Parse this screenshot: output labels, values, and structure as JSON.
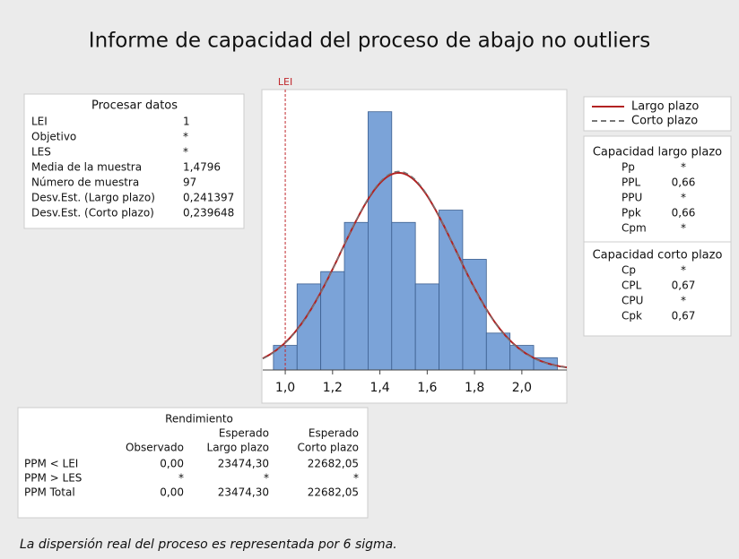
{
  "title": "Informe de capacidad del proceso de abajo no outliers",
  "process": {
    "title": "Procesar datos",
    "rows": [
      {
        "label": "LEI",
        "value": "1"
      },
      {
        "label": "Objetivo",
        "value": "*"
      },
      {
        "label": "LES",
        "value": "*"
      },
      {
        "label": "Media de la muestra",
        "value": "1,4796"
      },
      {
        "label": "Número de muestra",
        "value": "97"
      },
      {
        "label": "Desv.Est. (Largo plazo)",
        "value": "0,241397"
      },
      {
        "label": "Desv.Est. (Corto plazo)",
        "value": "0,239648"
      }
    ]
  },
  "chart_data": {
    "type": "histogram",
    "bins": [
      0.95,
      1.05,
      1.15,
      1.25,
      1.35,
      1.45,
      1.55,
      1.65,
      1.75,
      1.85,
      1.95,
      2.05,
      2.15
    ],
    "values": [
      2,
      7,
      8,
      12,
      21,
      12,
      7,
      13,
      9,
      3,
      2,
      1
    ],
    "color": "#7ba3d8",
    "xlim": [
      0.905,
      2.19
    ],
    "ylim": [
      0,
      22.8
    ],
    "xticks": [
      {
        "value": 1.0,
        "label": "1,0"
      },
      {
        "value": 1.2,
        "label": "1,2"
      },
      {
        "value": 1.4,
        "label": "1,4"
      },
      {
        "value": 1.6,
        "label": "1,6"
      },
      {
        "value": 1.8,
        "label": "1,8"
      },
      {
        "value": 2.0,
        "label": "2,0"
      }
    ],
    "limit_label": "LEI",
    "limit_color": "#c0282d",
    "series": [
      {
        "name": "Largo plazo",
        "color": "#b22222",
        "dashed": false
      },
      {
        "name": "Corto plazo",
        "color": "#777777",
        "dashed": true
      }
    ]
  },
  "capability_long": {
    "title": "Capacidad largo plazo",
    "rows": [
      {
        "label": "Pp",
        "value": "*"
      },
      {
        "label": "PPL",
        "value": "0,66"
      },
      {
        "label": "PPU",
        "value": "*"
      },
      {
        "label": "Ppk",
        "value": "0,66"
      },
      {
        "label": "Cpm",
        "value": "*"
      }
    ]
  },
  "capability_short": {
    "title": "Capacidad corto plazo",
    "rows": [
      {
        "label": "Cp",
        "value": "*"
      },
      {
        "label": "CPL",
        "value": "0,67"
      },
      {
        "label": "CPU",
        "value": "*"
      },
      {
        "label": "Cpk",
        "value": "0,67"
      }
    ]
  },
  "yield": {
    "title": "Rendimiento",
    "headers_top": [
      "Esperado",
      "Esperado"
    ],
    "headers": [
      "Observado",
      "Largo plazo",
      "Corto plazo"
    ],
    "rows": [
      {
        "label": "PPM < LEI",
        "cells": [
          "0,00",
          "23474,30",
          "22682,05"
        ]
      },
      {
        "label": "PPM > LES",
        "cells": [
          "*",
          "*",
          "*"
        ]
      },
      {
        "label": "PPM Total",
        "cells": [
          "0,00",
          "23474,30",
          "22682,05"
        ]
      }
    ]
  },
  "footnote": "La dispersión real del proceso es representada por 6 sigma."
}
